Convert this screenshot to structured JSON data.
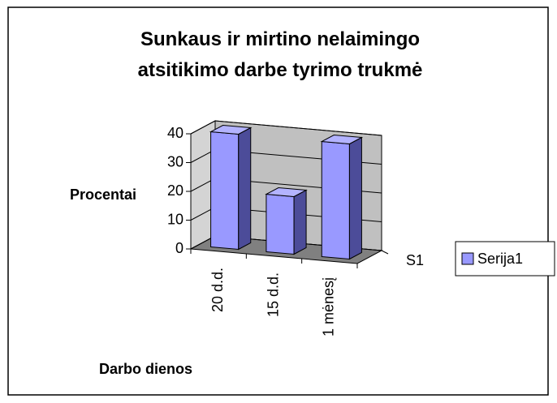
{
  "chart_data": {
    "type": "bar3d",
    "title": "Sunkaus ir mirtino nelaimingo atsitikimo darbe tyrimo trukmė",
    "ylabel": "Procentai",
    "xlabel": "Darbo dienos",
    "depth_label": "S1",
    "categories": [
      "20 d.d.",
      "15 d.d.",
      "1 mėnesį"
    ],
    "series": [
      {
        "name": "Serija1",
        "color": "#9999ff",
        "values": [
          40,
          20,
          40
        ]
      }
    ],
    "ylim": [
      0,
      40
    ],
    "yticks": [
      0,
      10,
      20,
      30,
      40
    ],
    "grid": true,
    "legend": "right"
  }
}
